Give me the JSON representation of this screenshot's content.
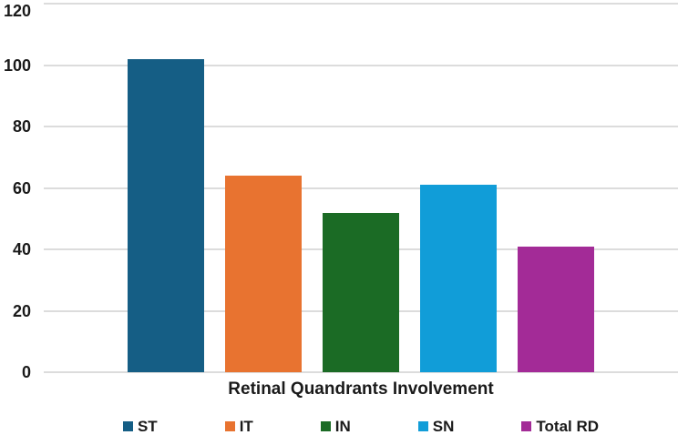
{
  "chart_data": {
    "type": "bar",
    "xlabel": "Retinal Quandrants Involvement",
    "categories": [
      "ST",
      "IT",
      "IN",
      "SN",
      "Total RD"
    ],
    "values": [
      102,
      64,
      52,
      61,
      41
    ],
    "colors": [
      "#155E85",
      "#E87330",
      "#1B6B25",
      "#119DD8",
      "#A32B97"
    ],
    "ylim": [
      0,
      120
    ],
    "yticks": [
      0,
      20,
      40,
      60,
      80,
      100,
      120
    ],
    "grid": true,
    "gridline_color": "#DCDCDC",
    "background": "#FFFFFF",
    "text_color": "#1A1A1A",
    "legend_position": "bottom"
  }
}
